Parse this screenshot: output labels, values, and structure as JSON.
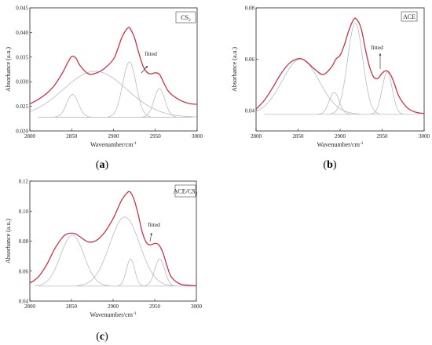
{
  "chart_data": [
    {
      "type": "line",
      "panel": "(a)",
      "legend": {
        "main": "CS",
        "sub": "2"
      },
      "annotation": "fitted",
      "xlabel": "Wavenumber/cm",
      "xlabel_sup": "-1",
      "ylabel": "Absorbance (a.u.)",
      "xlim": [
        2800,
        3000
      ],
      "ylim": [
        0.02,
        0.045
      ],
      "x_ticks": [
        "2800",
        "2850",
        "2900",
        "2950",
        "3000"
      ],
      "x_tick_values": [
        2800,
        2850,
        2900,
        2950,
        3000
      ],
      "y_ticks": [
        "0.020",
        "0.025",
        "0.030",
        "0.035",
        "0.040",
        "0.045"
      ],
      "y_tick_values": [
        0.02,
        0.025,
        0.03,
        0.035,
        0.04,
        0.045
      ],
      "baseline": 0.0228,
      "components": [
        {
          "center": 2851,
          "height": 0.0046,
          "width": 7
        },
        {
          "center": 2878,
          "height": 0.0093,
          "width": 38
        },
        {
          "center": 2919,
          "height": 0.0112,
          "width": 8
        },
        {
          "center": 2955,
          "height": 0.0058,
          "width": 6.5
        }
      ],
      "fitted": {
        "x": [
          2800,
          2810,
          2820,
          2830,
          2840,
          2845,
          2850,
          2855,
          2860,
          2870,
          2880,
          2890,
          2900,
          2905,
          2910,
          2915,
          2918,
          2920,
          2925,
          2930,
          2935,
          2940,
          2945,
          2950,
          2955,
          2960,
          2965,
          2970,
          2980,
          2990,
          3000
        ],
        "y": [
          0.0255,
          0.0264,
          0.0276,
          0.0294,
          0.0321,
          0.0338,
          0.0351,
          0.0348,
          0.0333,
          0.0316,
          0.0318,
          0.0328,
          0.0346,
          0.0366,
          0.039,
          0.0405,
          0.041,
          0.0408,
          0.039,
          0.036,
          0.0333,
          0.0319,
          0.0316,
          0.0318,
          0.0315,
          0.0298,
          0.0282,
          0.0273,
          0.0262,
          0.0256,
          0.0254
        ]
      }
    },
    {
      "type": "line",
      "panel": "(b)",
      "legend": {
        "main": "ACE",
        "sub": ""
      },
      "annotation": "fitted",
      "xlabel": "Wavenumber/cm",
      "xlabel_sup": "-1",
      "ylabel": "Absorbance (a.u.)",
      "xlim": [
        2800,
        3000
      ],
      "ylim": [
        0.032,
        0.08
      ],
      "x_ticks": [
        "2800",
        "2850",
        "2900",
        "2950",
        "3000"
      ],
      "x_tick_values": [
        2800,
        2850,
        2900,
        2950,
        3000
      ],
      "y_ticks": [
        "0.04",
        "0.06",
        "0.08"
      ],
      "y_tick_values": [
        0.04,
        0.06,
        0.08
      ],
      "baseline": 0.0385,
      "components": [
        {
          "center": 2853,
          "height": 0.0215,
          "width": 22
        },
        {
          "center": 2893,
          "height": 0.0085,
          "width": 6
        },
        {
          "center": 2918,
          "height": 0.0355,
          "width": 9
        },
        {
          "center": 2956,
          "height": 0.0165,
          "width": 6
        }
      ],
      "fitted": {
        "x": [
          2800,
          2810,
          2820,
          2830,
          2840,
          2850,
          2855,
          2860,
          2870,
          2880,
          2890,
          2895,
          2900,
          2905,
          2910,
          2915,
          2919,
          2925,
          2930,
          2935,
          2940,
          2945,
          2950,
          2955,
          2960,
          2965,
          2970,
          2980,
          2990,
          3000
        ],
        "y": [
          0.0405,
          0.044,
          0.049,
          0.0545,
          0.0585,
          0.0602,
          0.06,
          0.059,
          0.056,
          0.054,
          0.057,
          0.06,
          0.0615,
          0.0655,
          0.0708,
          0.0748,
          0.0758,
          0.072,
          0.064,
          0.057,
          0.053,
          0.0525,
          0.0545,
          0.0555,
          0.054,
          0.05,
          0.0455,
          0.041,
          0.0393,
          0.0388
        ]
      }
    },
    {
      "type": "line",
      "panel": "(c)",
      "legend": {
        "main": "ACE/CS",
        "sub": "2"
      },
      "annotation": "fitted",
      "xlabel": "Wavenumber/cm",
      "xlabel_sup": "-1",
      "ylabel": "Absorbance (a.u.)",
      "xlim": [
        2800,
        3000
      ],
      "ylim": [
        0.04,
        0.12
      ],
      "x_ticks": [
        "2800",
        "2850",
        "2900",
        "2950",
        "3000"
      ],
      "x_tick_values": [
        2800,
        2850,
        2900,
        2950,
        3000
      ],
      "y_ticks": [
        "0.04",
        "0.06",
        "0.08",
        "0.10",
        "0.12"
      ],
      "y_tick_values": [
        0.04,
        0.06,
        0.08,
        0.1,
        0.12
      ],
      "baseline": 0.05,
      "components": [
        {
          "center": 2851,
          "height": 0.034,
          "width": 14
        },
        {
          "center": 2914,
          "height": 0.046,
          "width": 18
        },
        {
          "center": 2921,
          "height": 0.018,
          "width": 5
        },
        {
          "center": 2956,
          "height": 0.018,
          "width": 6
        }
      ],
      "fitted": {
        "x": [
          2800,
          2810,
          2820,
          2830,
          2840,
          2845,
          2850,
          2855,
          2860,
          2870,
          2880,
          2890,
          2900,
          2905,
          2910,
          2915,
          2920,
          2925,
          2930,
          2935,
          2940,
          2945,
          2950,
          2955,
          2960,
          2965,
          2970,
          2980,
          2990,
          3000
        ],
        "y": [
          0.052,
          0.056,
          0.064,
          0.075,
          0.083,
          0.0848,
          0.0853,
          0.0848,
          0.083,
          0.0795,
          0.0805,
          0.086,
          0.095,
          0.101,
          0.107,
          0.111,
          0.113,
          0.108,
          0.098,
          0.086,
          0.079,
          0.0775,
          0.0785,
          0.0775,
          0.072,
          0.063,
          0.056,
          0.0515,
          0.0505,
          0.0502
        ]
      }
    }
  ],
  "captions": [
    {
      "text": "a"
    },
    {
      "text": "b"
    },
    {
      "text": "c"
    }
  ]
}
